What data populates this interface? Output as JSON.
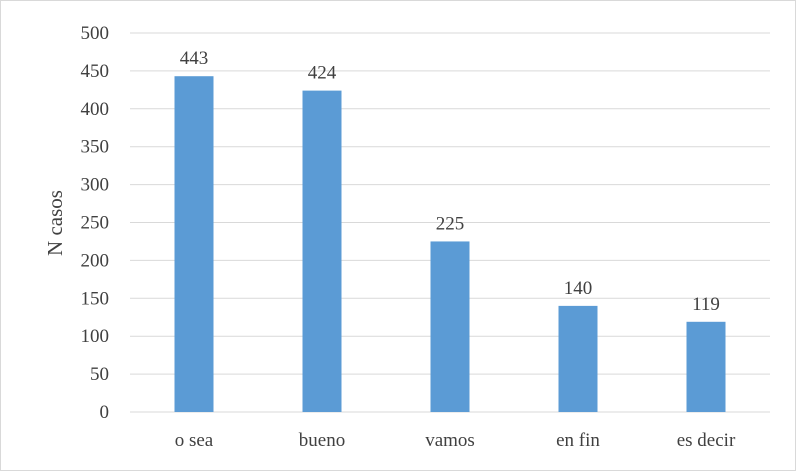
{
  "chart_data": {
    "type": "bar",
    "title": "",
    "xlabel": "",
    "ylabel": "N casos",
    "categories": [
      "o sea",
      "bueno",
      "vamos",
      "en fin",
      "es decir"
    ],
    "values": [
      443,
      424,
      225,
      140,
      119
    ],
    "data_labels": [
      "443",
      "424",
      "225",
      "140",
      "119"
    ],
    "ylim": [
      0,
      500
    ],
    "yticks": [
      0,
      50,
      100,
      150,
      200,
      250,
      300,
      350,
      400,
      450,
      500
    ],
    "grid": true,
    "bar_color": "#5b9bd5",
    "grid_color": "#d9d9d9",
    "text_color": "#404040"
  }
}
